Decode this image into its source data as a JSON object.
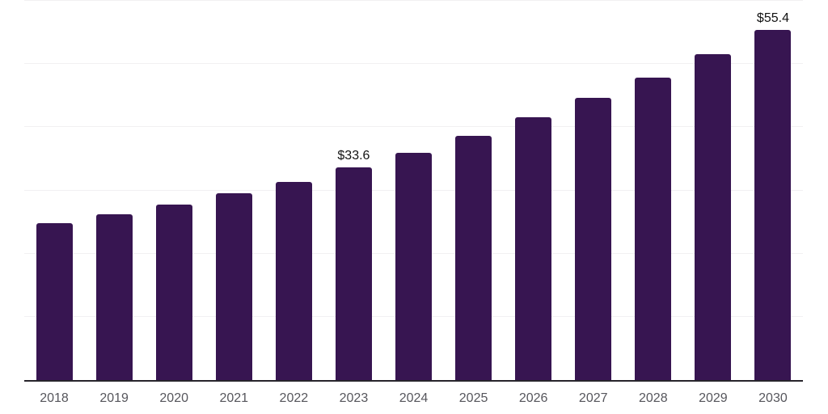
{
  "chart_data": {
    "type": "bar",
    "title": "",
    "xlabel": "",
    "ylabel": "",
    "categories": [
      "2018",
      "2019",
      "2020",
      "2021",
      "2022",
      "2023",
      "2024",
      "2025",
      "2026",
      "2027",
      "2028",
      "2029",
      "2030"
    ],
    "values": [
      24.8,
      26.2,
      27.7,
      29.5,
      31.4,
      33.6,
      36.0,
      38.6,
      41.6,
      44.6,
      47.9,
      51.6,
      55.4
    ],
    "bar_labels": [
      null,
      null,
      null,
      null,
      null,
      "$33.6",
      null,
      null,
      null,
      null,
      null,
      null,
      "$55.4"
    ],
    "ylim": [
      0,
      60
    ],
    "gridline_step": 10,
    "grid": true,
    "legend": false,
    "y_axis_tick_labels_visible": false
  },
  "colors": {
    "bar": "#371551",
    "grid": "#f1f0f2",
    "axis_line": "#27242b",
    "year_label": "#56565c",
    "value_label": "#121212",
    "background": "#ffffff"
  }
}
